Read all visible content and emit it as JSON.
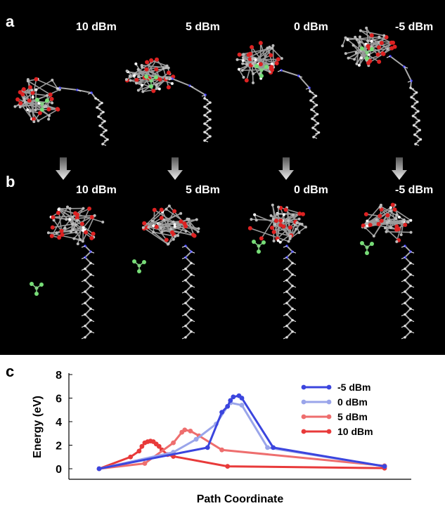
{
  "panels": {
    "a": "a",
    "b": "b",
    "c": "c"
  },
  "row_a_labels": [
    "10 dBm",
    "5 dBm",
    "0 dBm",
    "-5 dBm"
  ],
  "row_b_labels": [
    "10 dBm",
    "5 dBm",
    "0 dBm",
    "-5 dBm"
  ],
  "chart_data": {
    "type": "line",
    "xlabel": "Path Coordinate",
    "ylabel": "Energy (eV)",
    "ylim": [
      0,
      8
    ],
    "yticks": [
      0,
      2,
      4,
      6,
      8
    ],
    "xlim": [
      0,
      1
    ],
    "legend_position": "top-right",
    "series": [
      {
        "name": "-5 dBm",
        "color": "#3b45de",
        "x": [
          0,
          0.38,
          0.43,
          0.45,
          0.46,
          0.47,
          0.49,
          0.5,
          0.61,
          1.0
        ],
        "y": [
          0,
          1.8,
          4.8,
          5.3,
          5.8,
          6.1,
          6.2,
          6.0,
          1.8,
          0.2
        ]
      },
      {
        "name": "0 dBm",
        "color": "#9aa5ea",
        "x": [
          0,
          0.26,
          0.34,
          0.41,
          0.45,
          0.46,
          0.5,
          0.59,
          1.0
        ],
        "y": [
          0,
          1.4,
          2.5,
          3.8,
          5.3,
          5.6,
          5.4,
          1.8,
          0.2
        ]
      },
      {
        "name": "5 dBm",
        "color": "#ee6e6e",
        "x": [
          0,
          0.16,
          0.26,
          0.29,
          0.3,
          0.32,
          0.35,
          0.43,
          1.0
        ],
        "y": [
          0,
          0.45,
          2.2,
          3.1,
          3.3,
          3.2,
          2.8,
          1.6,
          0.25
        ]
      },
      {
        "name": "10 dBm",
        "color": "#e83a3a",
        "x": [
          0,
          0.11,
          0.14,
          0.15,
          0.16,
          0.17,
          0.18,
          0.19,
          0.2,
          0.21,
          0.22,
          0.24,
          0.26,
          0.45,
          1.0
        ],
        "y": [
          0,
          1.0,
          1.5,
          1.9,
          2.2,
          2.3,
          2.35,
          2.3,
          2.1,
          1.9,
          1.6,
          1.2,
          1.05,
          0.2,
          0.05
        ]
      }
    ]
  }
}
